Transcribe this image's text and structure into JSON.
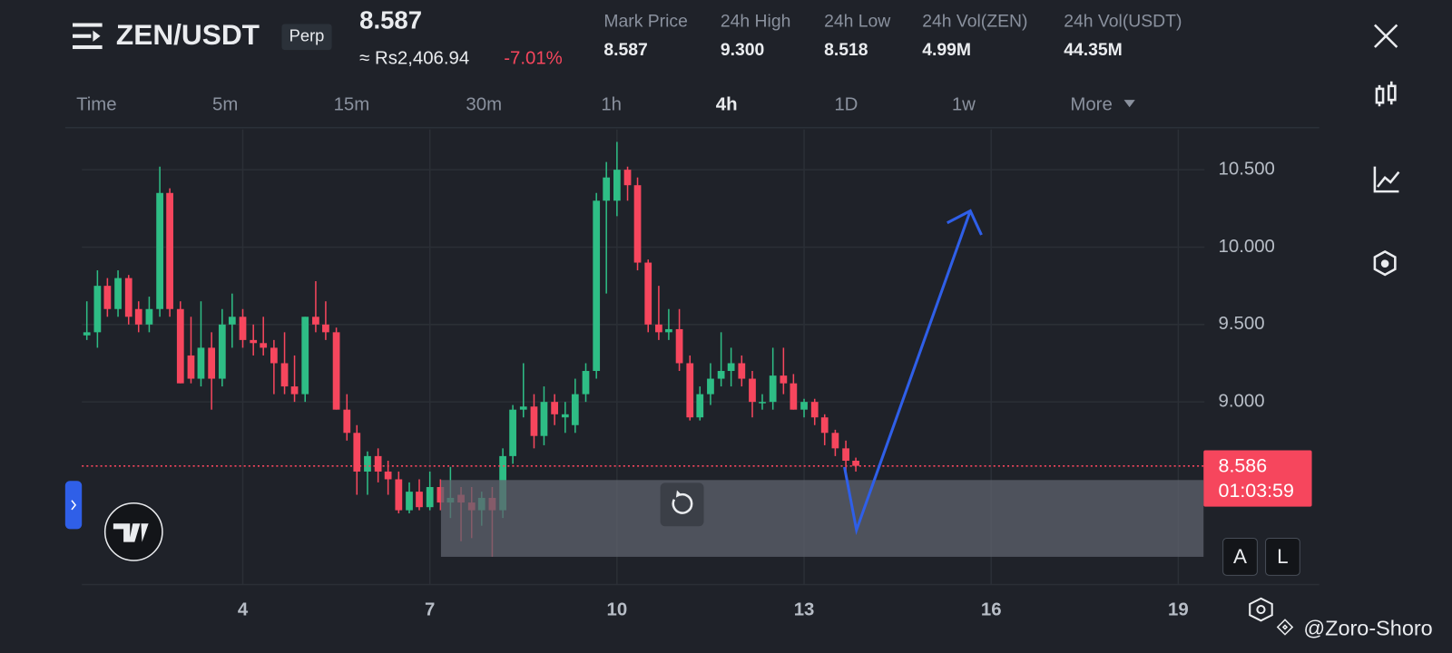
{
  "header": {
    "pair": "ZEN/USDT",
    "badge": "Perp",
    "price": "8.587",
    "fiat_price": "≈ Rs2,406.94",
    "change": "-7.01%",
    "stats": [
      {
        "label": "Mark Price",
        "value": "8.587"
      },
      {
        "label": "24h High",
        "value": "9.300"
      },
      {
        "label": "24h Low",
        "value": "8.518"
      },
      {
        "label": "24h Vol(ZEN)",
        "value": "4.99M"
      },
      {
        "label": "24h Vol(USDT)",
        "value": "44.35M"
      }
    ]
  },
  "timeframes": [
    "Time",
    "5m",
    "15m",
    "30m",
    "1h",
    "4h",
    "1D",
    "1w",
    "More"
  ],
  "active_timeframe": "4h",
  "buttons": [
    "A",
    "L"
  ],
  "watermark": "@Zoro-Shoro",
  "chart_data": {
    "type": "candlestick",
    "up_color": "#2ebd85",
    "down_color": "#f6465d",
    "grid": true,
    "xlim": [
      1.42,
      19.42
    ],
    "ylim": [
      7.82,
      10.76
    ],
    "xticks": [
      4,
      7,
      10,
      13,
      16,
      19
    ],
    "yticks": [
      {
        "value": 9,
        "label": "9.000"
      },
      {
        "value": 9.5,
        "label": "9.500"
      },
      {
        "value": 10,
        "label": "10.000"
      },
      {
        "value": 10.5,
        "label": "10.500"
      }
    ],
    "last_price": 8.586,
    "countdown": "01:03:59",
    "x": [
      1.5,
      1.67,
      1.83,
      2,
      2.17,
      2.33,
      2.5,
      2.67,
      2.83,
      3,
      3.17,
      3.33,
      3.5,
      3.67,
      3.83,
      4,
      4.17,
      4.33,
      4.5,
      4.67,
      4.83,
      5,
      5.17,
      5.33,
      5.5,
      5.67,
      5.83,
      6,
      6.17,
      6.33,
      6.5,
      6.67,
      6.83,
      7,
      7.17,
      7.33,
      7.5,
      7.67,
      7.83,
      8,
      8.17,
      8.33,
      8.5,
      8.67,
      8.83,
      9,
      9.17,
      9.33,
      9.5,
      9.67,
      9.83,
      10,
      10.17,
      10.33,
      10.5,
      10.67,
      10.83,
      11,
      11.17,
      11.33,
      11.5,
      11.67,
      11.83,
      12,
      12.17,
      12.33,
      12.5,
      12.67,
      12.83,
      13,
      13.17,
      13.33,
      13.5,
      13.67,
      13.83
    ],
    "open": [
      9.43,
      9.45,
      9.75,
      9.6,
      9.8,
      9.6,
      9.5,
      9.6,
      10.35,
      9.6,
      9.3,
      9.15,
      9.35,
      9.15,
      9.5,
      9.55,
      9.4,
      9.38,
      9.35,
      9.25,
      9.1,
      9.05,
      9.55,
      9.5,
      9.45,
      8.95,
      8.8,
      8.55,
      8.65,
      8.55,
      8.5,
      8.3,
      8.42,
      8.32,
      8.45,
      8.35,
      8.4,
      8.35,
      8.3,
      8.38,
      8.3,
      8.65,
      8.95,
      8.97,
      8.78,
      9,
      8.9,
      8.85,
      9.05,
      9.2,
      10.3,
      10.3,
      10.5,
      10.4,
      9.9,
      9.5,
      9.45,
      9.47,
      9.25,
      8.9,
      9.05,
      9.15,
      9.2,
      9.25,
      9.15,
      9,
      9,
      9.17,
      9.12,
      8.95,
      9,
      8.9,
      8.8,
      8.7,
      8.62
    ],
    "high": [
      9.65,
      9.85,
      9.8,
      9.85,
      9.82,
      9.65,
      9.68,
      10.52,
      10.38,
      9.65,
      9.55,
      9.65,
      9.45,
      9.6,
      9.7,
      9.6,
      9.5,
      9.55,
      9.4,
      9.45,
      9.3,
      9.55,
      9.78,
      9.65,
      9.48,
      9.05,
      8.85,
      8.68,
      8.7,
      8.62,
      8.55,
      8.48,
      8.5,
      8.55,
      8.5,
      8.58,
      8.45,
      8.45,
      8.42,
      8.45,
      8.7,
      8.98,
      9.25,
      9.05,
      9.1,
      9.05,
      9,
      9.15,
      9.25,
      10.35,
      10.55,
      10.68,
      10.52,
      10.45,
      9.92,
      9.75,
      9.6,
      9.6,
      9.3,
      9.1,
      9.25,
      9.45,
      9.35,
      9.3,
      9.2,
      9.05,
      9.35,
      9.35,
      9.18,
      9.02,
      9.02,
      8.92,
      8.82,
      8.75,
      8.64
    ],
    "low": [
      9.4,
      9.35,
      9.55,
      9.55,
      9.5,
      9.45,
      9.45,
      9.55,
      9.55,
      9.12,
      9.12,
      9.1,
      8.95,
      9.1,
      9.35,
      9.35,
      9.3,
      9.3,
      9.05,
      9.05,
      9,
      9,
      9.45,
      9.4,
      8.95,
      8.75,
      8.4,
      8.4,
      8.48,
      8.4,
      8.28,
      8.28,
      8.3,
      8.3,
      8.3,
      8.25,
      8.1,
      8.12,
      8.2,
      8,
      8.25,
      8.6,
      8.9,
      8.7,
      8.72,
      8.85,
      8.8,
      8.8,
      9,
      9.15,
      9.7,
      10.2,
      10.3,
      9.85,
      9.45,
      9.4,
      9.4,
      9.2,
      8.88,
      8.88,
      8.98,
      9.1,
      9.1,
      9.1,
      8.9,
      8.95,
      8.95,
      9.05,
      8.95,
      8.9,
      8.85,
      8.72,
      8.65,
      8.55,
      8.55
    ],
    "close": [
      9.45,
      9.75,
      9.6,
      9.8,
      9.55,
      9.5,
      9.6,
      10.35,
      9.6,
      9.12,
      9.15,
      9.35,
      9.15,
      9.5,
      9.55,
      9.4,
      9.38,
      9.35,
      9.25,
      9.1,
      9.05,
      9.55,
      9.5,
      9.45,
      8.95,
      8.8,
      8.55,
      8.65,
      8.55,
      8.5,
      8.3,
      8.42,
      8.32,
      8.45,
      8.35,
      8.38,
      8.35,
      8.3,
      8.38,
      8.3,
      8.65,
      8.95,
      8.97,
      8.78,
      9,
      8.92,
      8.92,
      9.05,
      9.2,
      10.3,
      10.45,
      10.5,
      10.4,
      9.9,
      9.5,
      9.45,
      9.47,
      9.25,
      8.9,
      9.05,
      9.15,
      9.2,
      9.25,
      9.15,
      9,
      9,
      9.17,
      9.12,
      8.95,
      9,
      8.9,
      8.8,
      8.7,
      8.62,
      8.587
    ]
  }
}
